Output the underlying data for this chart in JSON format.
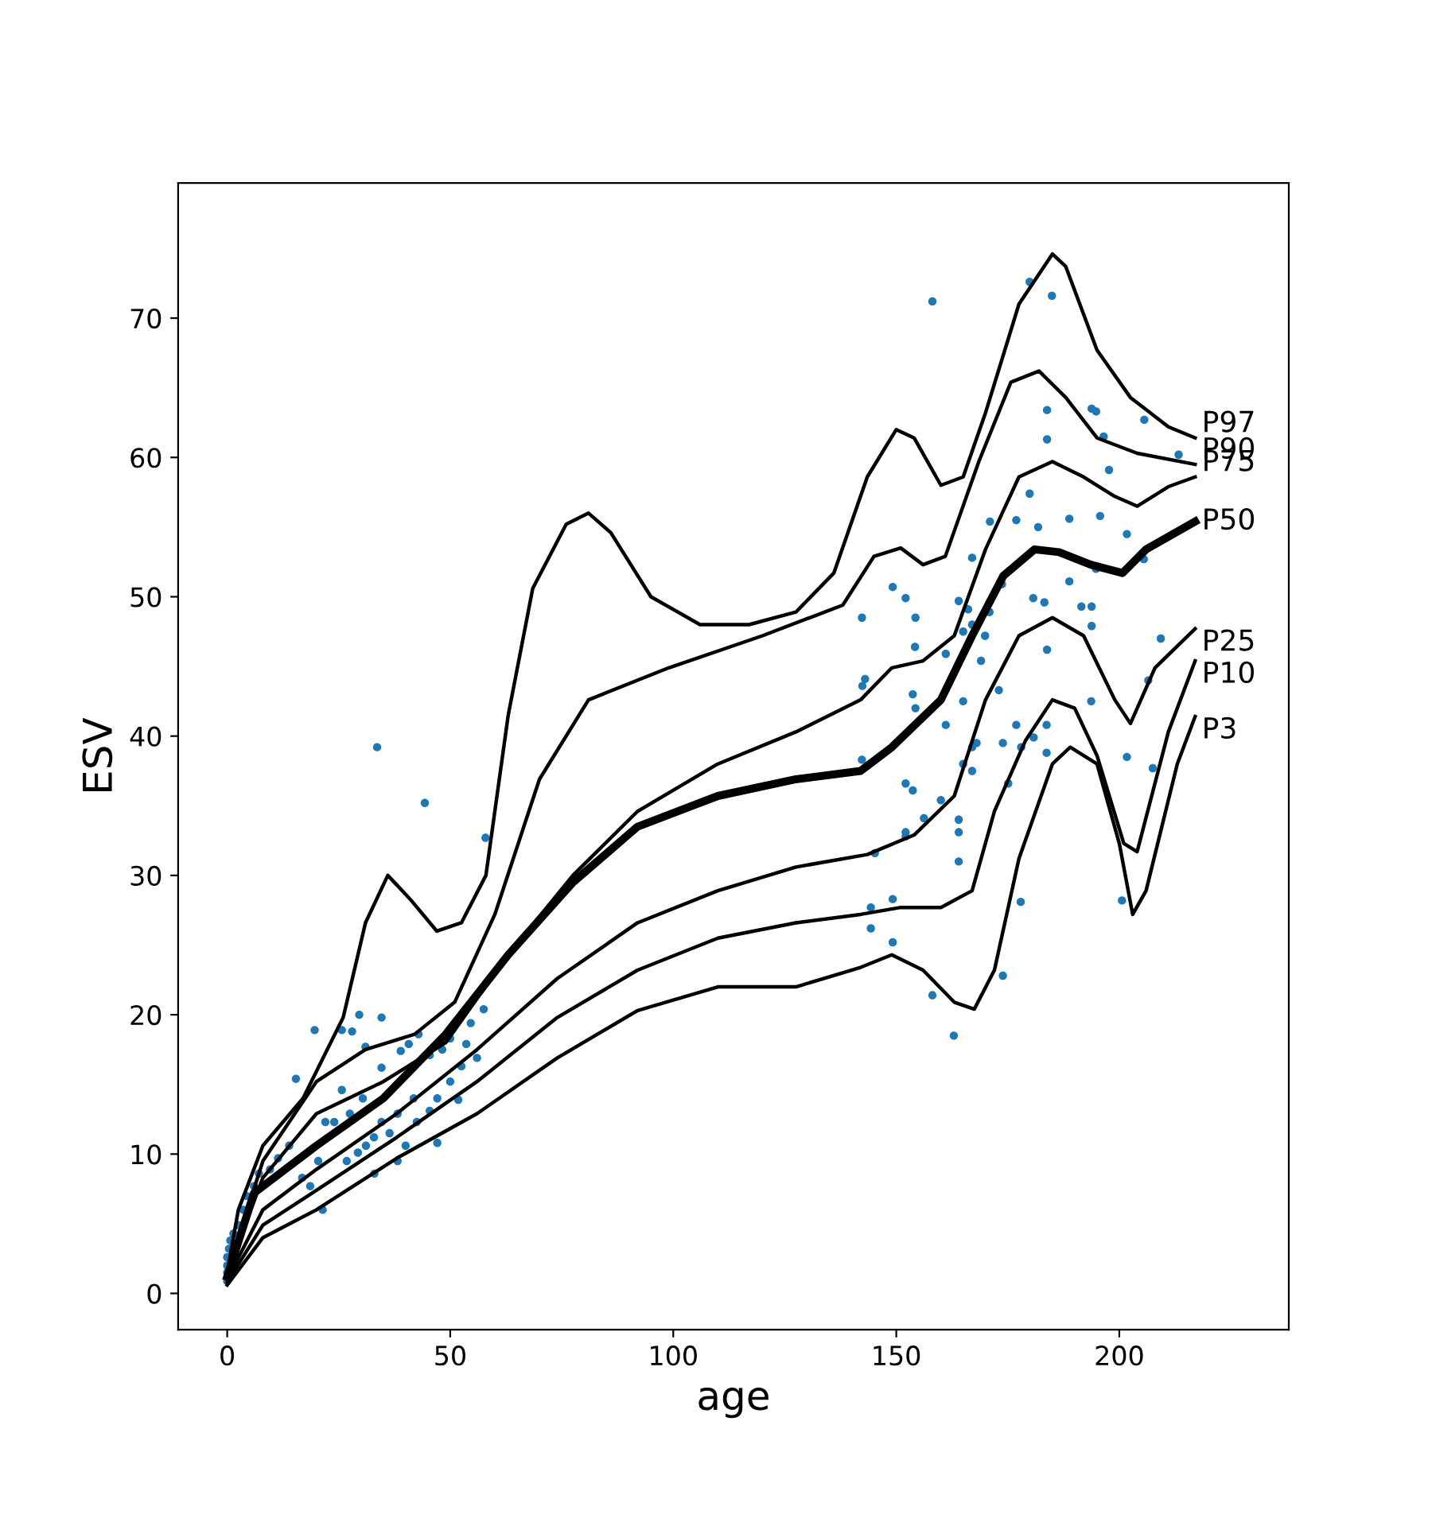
{
  "chart_data": {
    "type": "line",
    "xlabel": "age",
    "ylabel": "ESV",
    "xlim": [
      -11,
      238
    ],
    "ylim": [
      -2.6,
      79.7
    ],
    "xticks": [
      0,
      50,
      100,
      150,
      200
    ],
    "yticks": [
      0,
      10,
      20,
      30,
      40,
      50,
      60,
      70
    ],
    "grid": false,
    "legend": false,
    "series": [
      {
        "type": "scatter",
        "color": "#1f77b4",
        "marker": "circle",
        "x": [
          0,
          0,
          0,
          0,
          0.4,
          0.7,
          2.5,
          3.6,
          1.4,
          4.3,
          6,
          7.1,
          9.6,
          11.4,
          13.9,
          15.4,
          16.8,
          18.6,
          20.4,
          21.4,
          24,
          25.7,
          26.8,
          27.5,
          29.3,
          30.4,
          31.1,
          32.9,
          34.6,
          36.4,
          38.2,
          40,
          42.5,
          45.4,
          47.1,
          50,
          52.5,
          56,
          28,
          31,
          34.6,
          38.9,
          40.7,
          42.9,
          45.4,
          48.2,
          50,
          53.6,
          54.6,
          57.5,
          33.6,
          44.3,
          57.9,
          25.7,
          19.6,
          34.6,
          29.6,
          41.8,
          51.8,
          33,
          47.1,
          38.2,
          22,
          158.1,
          179.9,
          184.9,
          183.8,
          193.8,
          194.8,
          205.6,
          183.8,
          196.5,
          213.3,
          197.7,
          179.9,
          171,
          176.9,
          181.8,
          188.8,
          195.7,
          201.7,
          205.5,
          167,
          194.8,
          149.2,
          152.1,
          164,
          166.1,
          173.7,
          180.7,
          183.2,
          188.8,
          191.5,
          193.8,
          142.3,
          154.3,
          167,
          170.9,
          165,
          169.9,
          193.8,
          209.3,
          154.2,
          161.1,
          169,
          183.8,
          206.5,
          143,
          142.4,
          153.7,
          154.3,
          165,
          173,
          193.7,
          201.7,
          161.1,
          176.9,
          183.7,
          142.3,
          168,
          167,
          173.9,
          178,
          180.8,
          183.7,
          207.5,
          165,
          167,
          175.1,
          152.1,
          153.7,
          160,
          156.2,
          164,
          152.1,
          152.1,
          164,
          145.2,
          164,
          149.2,
          144.3,
          144.3,
          177.9,
          200.6,
          149.2,
          173.9,
          158.1,
          162.9
        ],
        "values": [
          2.6,
          2,
          1.5,
          0.9,
          3.2,
          3.8,
          4.9,
          6,
          4.3,
          7,
          7.7,
          8.6,
          8.9,
          9.7,
          10.6,
          15.4,
          8.3,
          7.7,
          9.5,
          6,
          12.3,
          14.6,
          9.5,
          12.9,
          10.1,
          14,
          10.6,
          11.2,
          12.3,
          11.5,
          12.9,
          10.6,
          12.3,
          13.1,
          14,
          15.2,
          16.3,
          16.9,
          18.8,
          17.7,
          16.2,
          17.4,
          17.9,
          18.6,
          17.1,
          17.5,
          18.3,
          17.9,
          19.4,
          20.4,
          39.2,
          35.2,
          32.7,
          18.9,
          18.9,
          19.8,
          20,
          14,
          13.9,
          8.6,
          10.8,
          9.5,
          12.3,
          71.2,
          72.6,
          71.6,
          63.4,
          63.5,
          63.3,
          62.7,
          61.3,
          61.5,
          60.2,
          59.1,
          57.4,
          55.4,
          55.5,
          55,
          55.6,
          55.8,
          54.5,
          52.7,
          52.8,
          52,
          50.7,
          49.9,
          49.7,
          49.1,
          50.9,
          49.9,
          49.6,
          51.1,
          49.3,
          49.3,
          48.5,
          48.5,
          48,
          48.9,
          47.5,
          47.2,
          47.9,
          47,
          46.4,
          45.9,
          45.4,
          46.2,
          44,
          44.1,
          43.6,
          43,
          42,
          42.5,
          43.3,
          42.5,
          38.5,
          40.8,
          40.8,
          40.8,
          38.3,
          39.5,
          39.2,
          39.5,
          39.2,
          39.9,
          38.8,
          37.7,
          38,
          37.5,
          36.6,
          36.6,
          36.1,
          35.4,
          34.1,
          34,
          33.1,
          32.8,
          33.1,
          31.6,
          31,
          28.3,
          27.7,
          26.2,
          28.1,
          28.2,
          25.2,
          22.8,
          21.4,
          18.5
        ]
      },
      {
        "name": "P97",
        "color": "#000000",
        "x": [
          0,
          2.5,
          8,
          17,
          26,
          31,
          36,
          41,
          47,
          52.5,
          58,
          63,
          68.5,
          76,
          81,
          86,
          95,
          106,
          117,
          127.5,
          136,
          143.5,
          150,
          154,
          160,
          165,
          170,
          177.5,
          185,
          188,
          195,
          202.5,
          211,
          217
        ],
        "values": [
          1.5,
          6,
          10.6,
          14,
          19.8,
          26.6,
          30,
          28.3,
          26,
          26.6,
          30,
          41.5,
          50.6,
          55.2,
          56,
          54.6,
          50,
          48,
          48,
          48.9,
          51.7,
          58.6,
          62,
          61.4,
          58,
          58.6,
          63.2,
          71,
          74.6,
          73.7,
          67.7,
          64.3,
          62.2,
          61.4
        ]
      },
      {
        "name": "P90",
        "color": "#000000",
        "x": [
          0,
          8,
          20,
          31,
          42,
          51,
          60,
          70,
          81,
          99,
          120,
          138,
          145,
          151,
          156,
          161,
          168.5,
          175.7,
          182,
          188,
          195,
          204,
          217
        ],
        "values": [
          1.5,
          9.5,
          15.2,
          17.5,
          18.6,
          20.9,
          27.2,
          36.9,
          42.6,
          44.9,
          47.2,
          49.4,
          52.9,
          53.5,
          52.3,
          52.9,
          59.7,
          65.4,
          66.2,
          64.3,
          61.4,
          60.3,
          59.5
        ]
      },
      {
        "name": "P75",
        "color": "#000000",
        "x": [
          0,
          8,
          20,
          35,
          49,
          63,
          77.5,
          92,
          110,
          127.5,
          142,
          149,
          156,
          163,
          170,
          177.5,
          185,
          192,
          199,
          204,
          211,
          217
        ],
        "values": [
          1.5,
          8.3,
          12.9,
          15.2,
          18,
          24.3,
          30,
          34.6,
          38,
          40.3,
          42.6,
          44.9,
          45.4,
          47.2,
          53.4,
          58.6,
          59.7,
          58.6,
          57.2,
          56.5,
          57.9,
          58.6
        ]
      },
      {
        "name": "P50",
        "color": "#000000",
        "x": [
          0,
          6,
          20,
          35,
          49,
          63,
          77.5,
          92,
          110,
          127.5,
          142,
          149,
          160,
          167,
          174,
          181,
          186.5,
          193.6,
          200.7,
          206,
          217
        ],
        "values": [
          1.2,
          7.2,
          10.6,
          14,
          18.6,
          24.3,
          29.5,
          33.5,
          35.7,
          36.9,
          37.5,
          39.2,
          42.6,
          47.2,
          51.5,
          53.4,
          53.2,
          52.3,
          51.7,
          53.4,
          55.4
        ]
      },
      {
        "name": "P25",
        "color": "#000000",
        "x": [
          0,
          8,
          20,
          38,
          56,
          74,
          92,
          110,
          127.5,
          143.5,
          154,
          163,
          170,
          177.5,
          185,
          192,
          199,
          202.5,
          208,
          217
        ],
        "values": [
          1,
          6,
          8.9,
          12.9,
          17.5,
          22.6,
          26.6,
          28.9,
          30.6,
          31.5,
          32.9,
          35.7,
          42.6,
          47.2,
          48.5,
          47.2,
          42.6,
          40.9,
          44.9,
          47.7
        ]
      },
      {
        "name": "P10",
        "color": "#000000",
        "x": [
          0,
          8,
          20,
          38,
          56,
          74,
          92,
          110,
          127.5,
          142,
          151,
          160,
          167,
          172,
          179,
          185,
          190,
          195,
          201,
          204,
          211,
          217
        ],
        "values": [
          0.8,
          4.9,
          7.4,
          11.2,
          15.2,
          19.8,
          23.2,
          25.5,
          26.6,
          27.2,
          27.7,
          27.7,
          28.9,
          34.6,
          39.7,
          42.6,
          42,
          38.6,
          32.3,
          31.7,
          40.3,
          45.4
        ]
      },
      {
        "name": "P3",
        "color": "#000000",
        "x": [
          0,
          8,
          20,
          38,
          56,
          74,
          92,
          110,
          127.5,
          142,
          149,
          156,
          163,
          167.5,
          172,
          177.5,
          185,
          189,
          195,
          200,
          203,
          206,
          213,
          217
        ],
        "values": [
          0.6,
          4,
          6,
          9.7,
          12.9,
          16.9,
          20.3,
          22,
          22,
          23.4,
          24.3,
          23.2,
          20.9,
          20.4,
          23.2,
          31.2,
          38,
          39.2,
          38,
          32.3,
          27.2,
          28.9,
          38,
          41.4
        ]
      }
    ]
  }
}
